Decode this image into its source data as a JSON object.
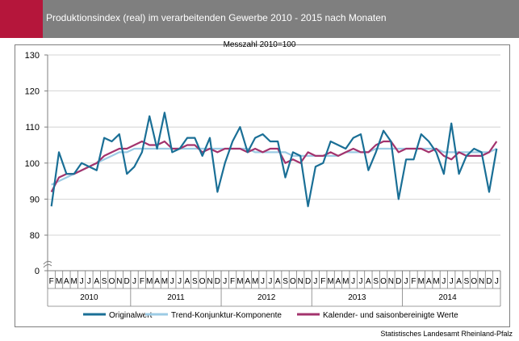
{
  "header": {
    "title": "Produktionsindex (real) im verarbeitenden Gewerbe 2010 - 2015 nach Monaten",
    "accent_color": "#b5163b",
    "bar_color": "#7f7f7f"
  },
  "source": "Statistisches Landesamt Rheinland-Pfalz",
  "chart_data": {
    "type": "line",
    "title": "",
    "subtitle": "Messzahl 2010=100",
    "ylim": [
      0,
      130
    ],
    "y_axis_break": [
      0,
      75
    ],
    "yticks": [
      0,
      80,
      90,
      100,
      110,
      120,
      130
    ],
    "grid": true,
    "legend_position": "bottom",
    "month_labels": [
      "F",
      "M",
      "A",
      "M",
      "J",
      "J",
      "A",
      "S",
      "O",
      "N",
      "D",
      "J",
      "F",
      "M",
      "A",
      "M",
      "J",
      "J",
      "A",
      "S",
      "O",
      "N",
      "D",
      "J",
      "F",
      "M",
      "A",
      "M",
      "J",
      "J",
      "A",
      "S",
      "O",
      "N",
      "D",
      "J",
      "F",
      "M",
      "A",
      "M",
      "J",
      "J",
      "A",
      "S",
      "O",
      "N",
      "D",
      "J",
      "F",
      "M",
      "A",
      "M",
      "J",
      "J",
      "A",
      "S",
      "O",
      "N",
      "D",
      "J"
    ],
    "years": [
      {
        "label": "2010",
        "start": 0,
        "end": 11
      },
      {
        "label": "2011",
        "start": 11,
        "end": 23
      },
      {
        "label": "2012",
        "start": 23,
        "end": 35
      },
      {
        "label": "2013",
        "start": 35,
        "end": 47
      },
      {
        "label": "2014",
        "start": 47,
        "end": 59
      }
    ],
    "series": [
      {
        "name": "Originalwert",
        "color": "#1a6f96",
        "width": 2.2,
        "values": [
          88,
          103,
          97,
          97,
          100,
          99,
          98,
          107,
          106,
          108,
          97,
          99,
          103,
          113,
          104,
          114,
          103,
          104,
          107,
          107,
          102,
          107,
          92,
          100,
          106,
          110,
          103,
          107,
          108,
          106,
          106,
          96,
          103,
          102,
          88,
          99,
          100,
          106,
          105,
          104,
          107,
          108,
          98,
          103,
          109,
          106,
          90,
          101,
          101,
          108,
          106,
          103,
          97,
          111,
          97,
          102,
          104,
          103,
          92,
          104
        ]
      },
      {
        "name": "Trend-Konjunktur-Komponente",
        "color": "#9ccbe4",
        "width": 2.2,
        "values": [
          94,
          95,
          96,
          97,
          98,
          99,
          100,
          101,
          102,
          103,
          103,
          104,
          104,
          104,
          104,
          104,
          104,
          104,
          104,
          104,
          104,
          104,
          104,
          104,
          104,
          104,
          104,
          103,
          103,
          103,
          103,
          103,
          102,
          102,
          102,
          102,
          102,
          102,
          102,
          103,
          103,
          103,
          103,
          104,
          104,
          104,
          104,
          104,
          104,
          104,
          104,
          104,
          103,
          103,
          103,
          103,
          103,
          103,
          103,
          104
        ]
      },
      {
        "name": "Kalender- und saisonbereinigte Werte",
        "color": "#a3336d",
        "width": 2.2,
        "values": [
          92,
          96,
          97,
          97,
          98,
          99,
          100,
          102,
          103,
          104,
          104,
          105,
          106,
          105,
          105,
          106,
          104,
          104,
          105,
          105,
          103,
          104,
          103,
          104,
          104,
          104,
          103,
          104,
          103,
          104,
          104,
          100,
          101,
          100,
          103,
          102,
          102,
          103,
          102,
          103,
          104,
          103,
          103,
          105,
          106,
          106,
          103,
          104,
          104,
          104,
          103,
          104,
          102,
          101,
          103,
          102,
          102,
          102,
          103,
          106
        ]
      }
    ]
  }
}
